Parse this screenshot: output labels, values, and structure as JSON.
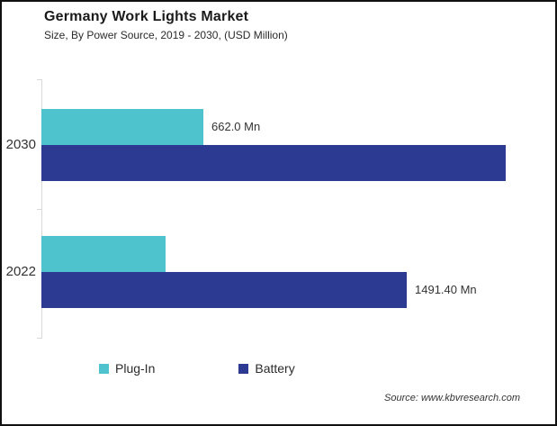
{
  "header": {
    "title": "Germany Work Lights Market",
    "subtitle": "Size, By Power Source, 2019 - 2030, (USD Million)"
  },
  "source": "Source: www.kbvresearch.com",
  "colors": {
    "plug_in": "#4FC3CD",
    "battery": "#2C3A92",
    "axis": "#D9D9D9",
    "text": "#333333"
  },
  "chart_data": {
    "type": "bar",
    "orientation": "horizontal",
    "title": "Germany Work Lights Market",
    "subtitle": "Size, By Power Source, 2019 - 2030, (USD Million)",
    "categories": [
      "2030",
      "2022"
    ],
    "series": [
      {
        "name": "Plug-In",
        "color": "#4FC3CD",
        "values": [
          662.0,
          507
        ],
        "labels": [
          "662.0 Mn",
          null
        ]
      },
      {
        "name": "Battery",
        "color": "#2C3A92",
        "values": [
          1895,
          1491.4
        ],
        "labels": [
          null,
          "1491.40 Mn"
        ]
      }
    ],
    "xlim": [
      0,
      2035
    ],
    "grid": false,
    "legend": [
      "Plug-In",
      "Battery"
    ],
    "legend_position": "bottom",
    "value_unit": "Mn",
    "note": "unlabeled bar values estimated from bar lengths"
  }
}
